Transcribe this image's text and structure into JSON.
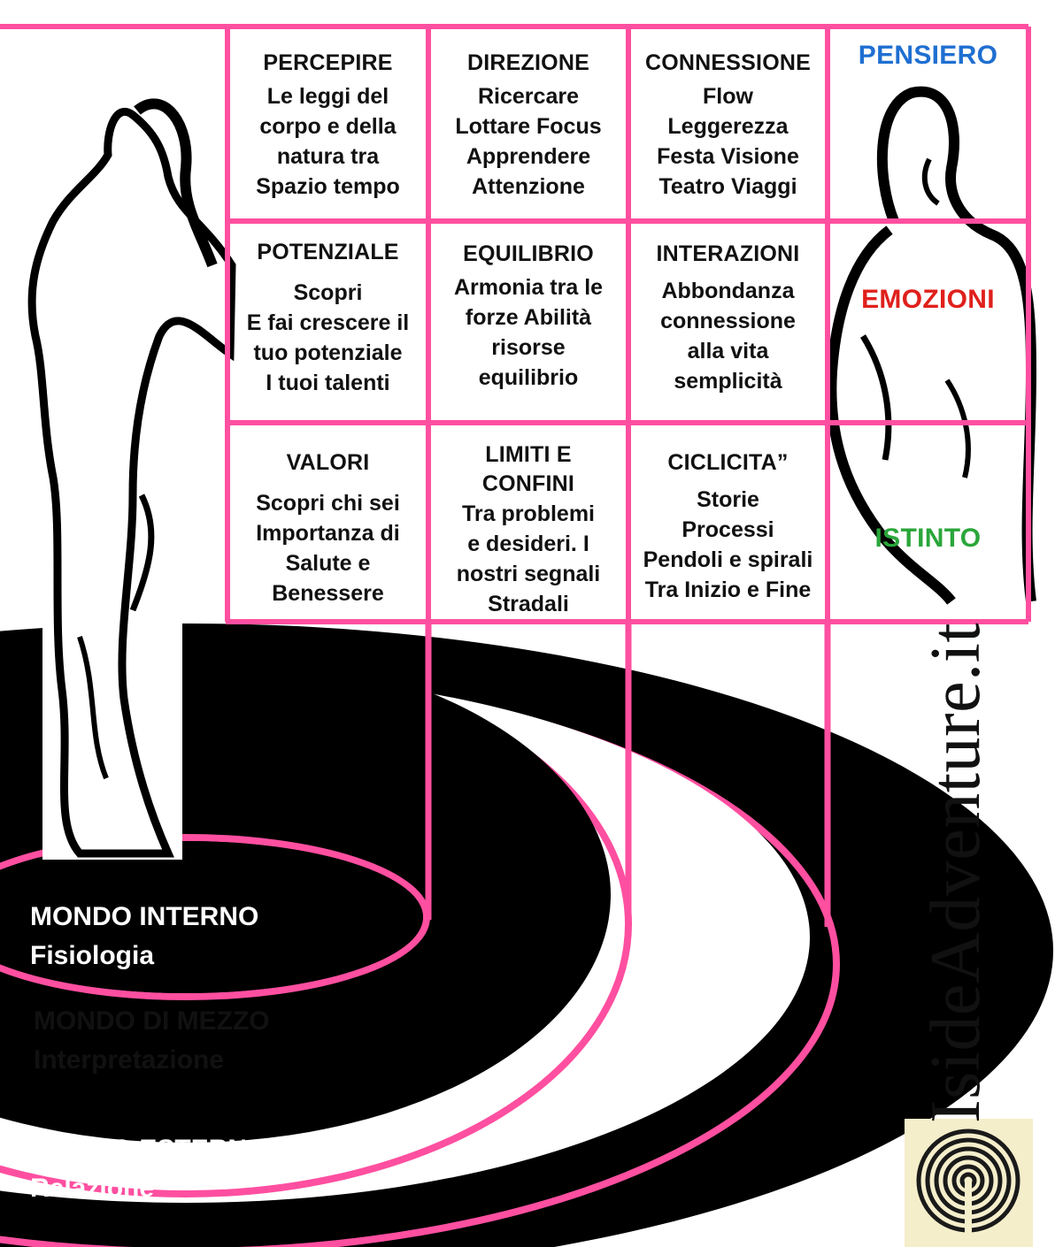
{
  "grid": {
    "rows": [
      {
        "cells": [
          {
            "heading": "PERCEPIRE",
            "text": "Le leggi del\ncorpo e della\nnatura tra\nSpazio tempo"
          },
          {
            "heading": "DIREZIONE",
            "text": "Ricercare\nLottare Focus\nApprendere\nAttenzione"
          },
          {
            "heading": "CONNESSIONE",
            "text": "Flow\nLeggerezza\nFesta Visione\nTeatro Viaggi"
          }
        ],
        "label": "PENSIERO",
        "label_color": "#1f6fd1"
      },
      {
        "cells": [
          {
            "heading": "POTENZIALE",
            "text": "Scopri\nE fai crescere il\ntuo potenziale\nI tuoi talenti"
          },
          {
            "heading": "EQUILIBRIO",
            "text": "Armonia tra le\nforze  Abilità\nrisorse\nequilibrio"
          },
          {
            "heading": "INTERAZIONI",
            "text": "Abbondanza\nconnessione\nalla vita\nsemplicità"
          }
        ],
        "label": "EMOZIONI",
        "label_color": "#e0201b"
      },
      {
        "cells": [
          {
            "heading": "VALORI",
            "text": "Scopri chi sei\nImportanza di\nSalute e\nBenessere"
          },
          {
            "heading": "LIMITI E\nCONFINI",
            "text": "Tra problemi\ne desideri. I\nnostri segnali\nStradali"
          },
          {
            "heading": "CICLICITA”",
            "text": "Storie\nProcessi\nPendoli e spirali\nTra Inizio e Fine"
          }
        ],
        "label": "ISTINTO",
        "label_color": "#2aa63a"
      }
    ]
  },
  "worlds": [
    {
      "title": "MONDO INTERNO",
      "subtitle": "Fisiologia",
      "color": "#ffffff"
    },
    {
      "title": "MONDO DI MEZZO",
      "subtitle": "Interpretazione",
      "color": "#111111"
    },
    {
      "title": "MONDO ESTERNO",
      "subtitle": "Relazione",
      "color": "#ffffff"
    }
  ],
  "brand": {
    "name": "IsideAdventure.it"
  },
  "colors": {
    "accent": "#ff4fa0",
    "ring_dark": "#000000",
    "ring_light": "#ffffff"
  }
}
